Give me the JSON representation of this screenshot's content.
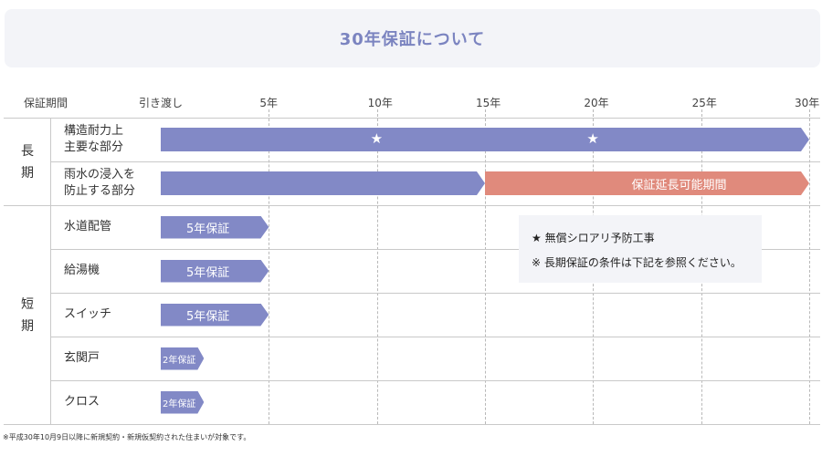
{
  "title": "30年保証について",
  "chart_data": {
    "type": "bar",
    "subtype": "gantt",
    "header_label": "保証期間",
    "x_ticks": [
      {
        "label": "引き渡し",
        "value": 0
      },
      {
        "label": "5年",
        "value": 5
      },
      {
        "label": "10年",
        "value": 10
      },
      {
        "label": "15年",
        "value": 15
      },
      {
        "label": "20年",
        "value": 20
      },
      {
        "label": "25年",
        "value": 25
      },
      {
        "label": "30年",
        "value": 30
      }
    ],
    "xlim": [
      0,
      30
    ],
    "categories": [
      {
        "label": "長期",
        "chars": [
          "長",
          "期"
        ],
        "rows": [
          0,
          1
        ]
      },
      {
        "label": "短期",
        "chars": [
          "短",
          "期"
        ],
        "rows": [
          2,
          3,
          4,
          5,
          6
        ]
      }
    ],
    "rows": [
      {
        "lines": [
          "構造耐力上",
          "主要な部分"
        ],
        "bars": [
          {
            "start": 0,
            "end": 30,
            "label": "",
            "color": "#8289c6"
          }
        ],
        "stars": [
          10,
          20
        ]
      },
      {
        "lines": [
          "雨水の浸入を",
          "防止する部分"
        ],
        "bars": [
          {
            "start": 0,
            "end": 15,
            "label": "",
            "color": "#8289c6"
          },
          {
            "start": 15,
            "end": 30,
            "label": "保証延長可能期間",
            "color": "#e08a7c"
          }
        ],
        "stars": []
      },
      {
        "lines": [
          "水道配管"
        ],
        "bars": [
          {
            "start": 0,
            "end": 5,
            "label": "5年保証",
            "color": "#8289c6"
          }
        ],
        "stars": []
      },
      {
        "lines": [
          "給湯機"
        ],
        "bars": [
          {
            "start": 0,
            "end": 5,
            "label": "5年保証",
            "color": "#8289c6"
          }
        ],
        "stars": []
      },
      {
        "lines": [
          "スイッチ"
        ],
        "bars": [
          {
            "start": 0,
            "end": 5,
            "label": "5年保証",
            "color": "#8289c6"
          }
        ],
        "stars": []
      },
      {
        "lines": [
          "玄関戸"
        ],
        "bars": [
          {
            "start": 0,
            "end": 2,
            "label": "2年保証",
            "color": "#8289c6"
          }
        ],
        "stars": []
      },
      {
        "lines": [
          "クロス"
        ],
        "bars": [
          {
            "start": 0,
            "end": 2,
            "label": "2年保証",
            "color": "#8289c6"
          }
        ],
        "stars": []
      }
    ],
    "star_glyph": "★",
    "grid": true
  },
  "legend": {
    "line1": "★ 無償シロアリ予防工事",
    "line2": "※ 長期保証の条件は下記を参照ください。"
  },
  "footnote": "※平成30年10月9日以降に新規契約・新規仮契約された住まいが対象です。"
}
